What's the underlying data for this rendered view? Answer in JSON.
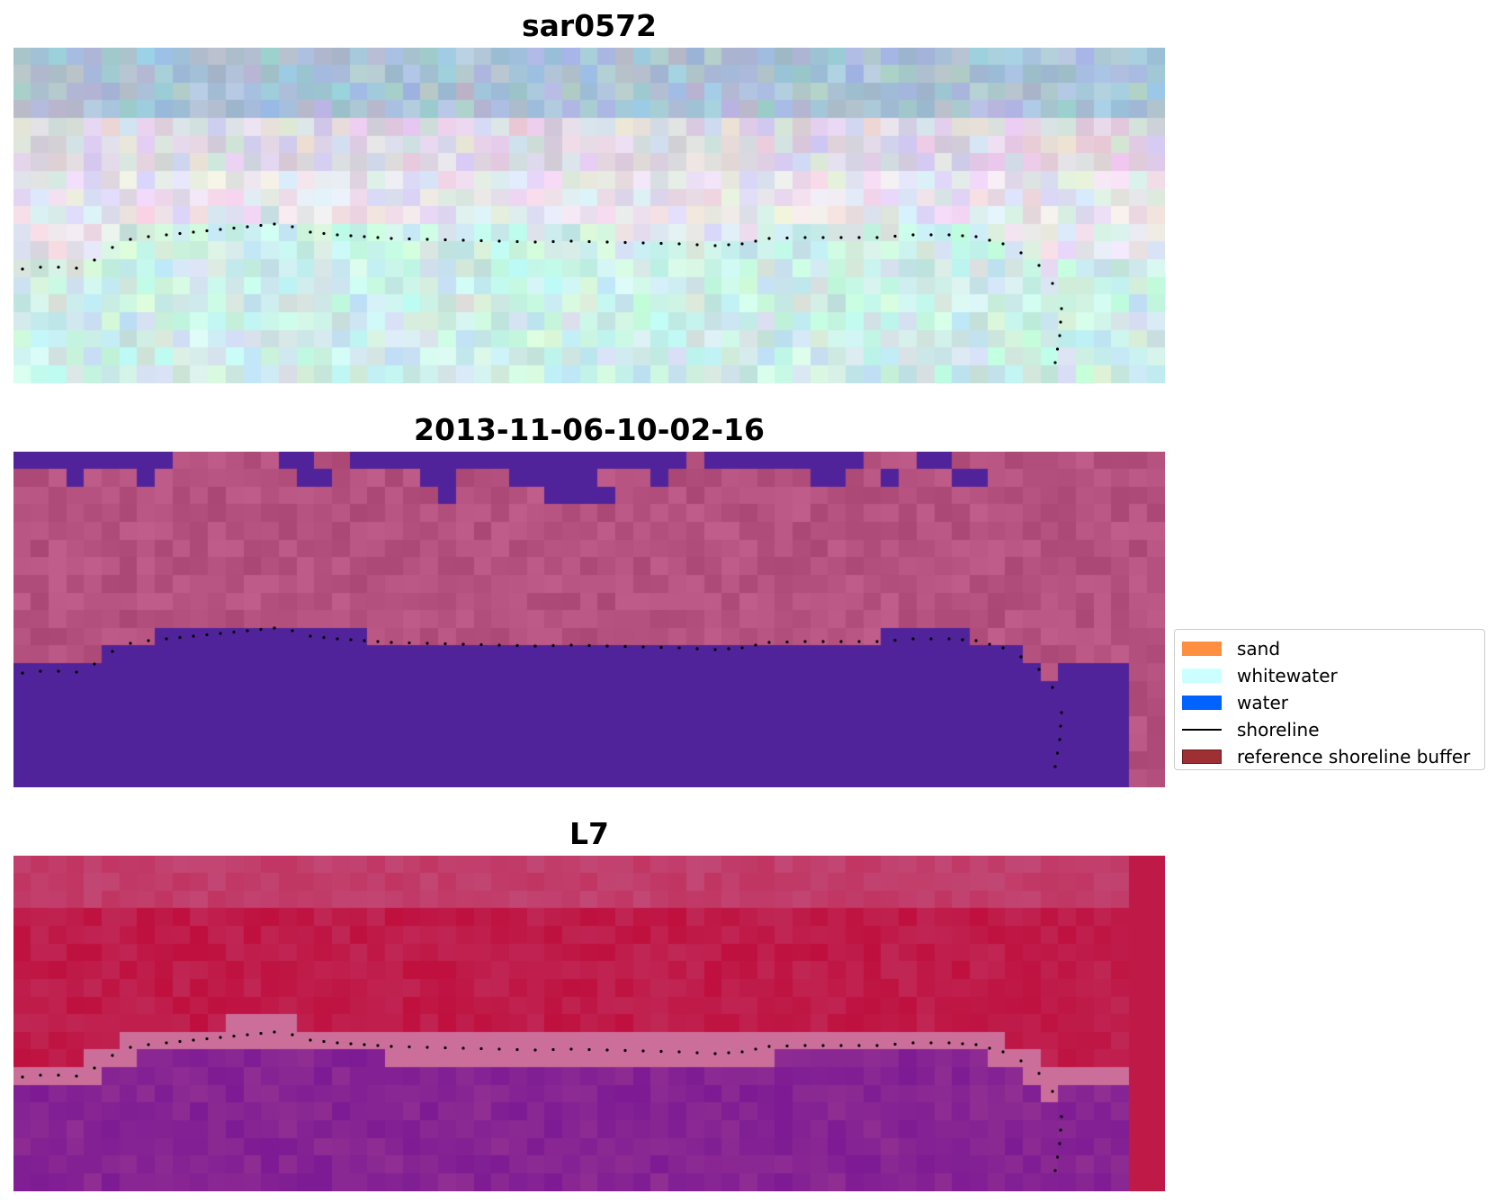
{
  "panels": [
    {
      "title": "sar0572",
      "kind": "sar"
    },
    {
      "title": "2013-11-06-10-02-16",
      "kind": "classified"
    },
    {
      "title": "L7",
      "kind": "ndwi"
    }
  ],
  "legend": [
    {
      "label": "sand",
      "type": "patch",
      "color": "#FF8F40",
      "edge": "#FF8F40"
    },
    {
      "label": "whitewater",
      "type": "patch",
      "color": "#CCFFFF",
      "edge": "#CCFFFF"
    },
    {
      "label": "water",
      "type": "patch",
      "color": "#0063FF",
      "edge": "#0063FF"
    },
    {
      "label": "shoreline",
      "type": "line",
      "color": "#000000"
    },
    {
      "label": "reference shoreline buffer",
      "type": "patch",
      "color": "#9E2F33",
      "edge": "#6B1C20"
    }
  ],
  "colors": {
    "water_class": "#51239B",
    "sand_land_tint": "#B5527F",
    "ndwi_high": "#650296",
    "ndwi_low": "#BE0635",
    "ndwi_mid": "#C4638F",
    "shoreline_points": "#000000"
  }
}
